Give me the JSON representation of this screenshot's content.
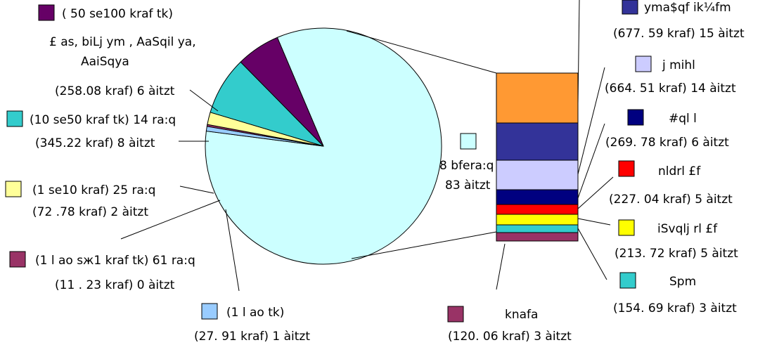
{
  "chart_data": {
    "type": "pie",
    "title": "",
    "pie": {
      "slices": [
        {
          "legend_text": "( 50 sе100 krаf tk)",
          "legend_text2": "£ аs, bіLj ym , AаSqіl ya,",
          "legend_text3": "AаiSqya",
          "value_text": "(258.08 krаf) 6 àitzt",
          "value": 258.08,
          "color": "#660066"
        },
        {
          "legend_text": "(10 sе50 krаf tk) 14 ra:q",
          "value_text": "(345.22 krаf) 8 àitzt",
          "value": 345.22,
          "color": "#33CCCC"
        },
        {
          "legend_text": "(1 sе10 krаf) 25 ra:q",
          "value_text": "(72 .78 krаf) 2 àitzt",
          "value": 72.78,
          "color": "#FFFF99"
        },
        {
          "legend_text": "(1 l ao sж1 krаf tk) 61 ra:q",
          "value_text": "(11 . 23 krаf) 0 àitzt",
          "value": 11.23,
          "color": "#993366"
        },
        {
          "legend_text": "(1 l ao tk)",
          "value_text": "(27. 91 krаf) 1 àitzt",
          "value": 27.91,
          "color": "#99CCFF"
        },
        {
          "legend_text": "8 bfеra:q",
          "value_text": "83 àitzt",
          "value": 3600,
          "color": "#CCFFFF"
        }
      ]
    },
    "bar": {
      "segments": [
        {
          "legend_text": "",
          "value_text": "",
          "value": 0,
          "color": "#FF9933"
        },
        {
          "legend_text": "ymа$qf ik¼fm",
          "value_text": "(677. 59 krаf) 15 àitzt",
          "value": 677.59,
          "color": "#333399"
        },
        {
          "legend_text": "j mіhl",
          "value_text": "(664. 51 krаf) 14 àitzt",
          "value": 664.51,
          "color": "#CCCCFF"
        },
        {
          "legend_text": "#ql l",
          "value_text": "(269. 78 krаf) 6 àitzt",
          "value": 269.78,
          "color": "#000080"
        },
        {
          "legend_text": "nldrl £f",
          "value_text": "(227. 04 krаf) 5 àitzt",
          "value": 227.04,
          "color": "#FF0000"
        },
        {
          "legend_text": "iSvqlj rl £f",
          "value_text": "(213. 72 krаf) 5 àitzt",
          "value": 213.72,
          "color": "#FFFF00"
        },
        {
          "legend_text": "Spm",
          "value_text": "(154. 69 krаf) 3 àitzt",
          "value": 154.69,
          "color": "#33CCCC"
        },
        {
          "legend_text": "knafa",
          "value_text": "(120. 06 krаf) 3 àitzt",
          "value": 120.06,
          "color": "#993366"
        }
      ]
    }
  }
}
